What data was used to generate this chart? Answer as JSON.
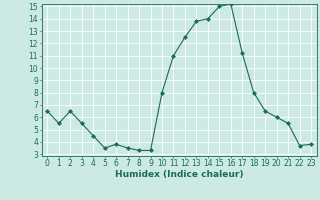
{
  "x": [
    0,
    1,
    2,
    3,
    4,
    5,
    6,
    7,
    8,
    9,
    10,
    11,
    12,
    13,
    14,
    15,
    16,
    17,
    18,
    19,
    20,
    21,
    22,
    23
  ],
  "y": [
    6.5,
    5.5,
    6.5,
    5.5,
    4.5,
    3.5,
    3.8,
    3.5,
    3.3,
    3.3,
    8.0,
    11.0,
    12.5,
    13.8,
    14.0,
    15.0,
    15.2,
    11.2,
    8.0,
    6.5,
    6.0,
    5.5,
    3.7,
    3.8
  ],
  "line_color": "#1a6b5a",
  "marker": "D",
  "marker_size": 2,
  "bg_color": "#cce9e4",
  "grid_color": "#ffffff",
  "xlabel": "Humidex (Indice chaleur)",
  "ylim": [
    3,
    15
  ],
  "xlim": [
    -0.5,
    23.5
  ],
  "yticks": [
    3,
    4,
    5,
    6,
    7,
    8,
    9,
    10,
    11,
    12,
    13,
    14,
    15
  ],
  "xticks": [
    0,
    1,
    2,
    3,
    4,
    5,
    6,
    7,
    8,
    9,
    10,
    11,
    12,
    13,
    14,
    15,
    16,
    17,
    18,
    19,
    20,
    21,
    22,
    23
  ],
  "xtick_labels": [
    "0",
    "1",
    "2",
    "3",
    "4",
    "5",
    "6",
    "7",
    "8",
    "9",
    "10",
    "11",
    "12",
    "13",
    "14",
    "15",
    "16",
    "17",
    "18",
    "19",
    "20",
    "21",
    "22",
    "23"
  ],
  "tick_color": "#1a6b5a",
  "axis_color": "#1a6b5a",
  "label_fontsize": 6.5,
  "tick_fontsize": 5.5,
  "grid_linewidth": 0.6
}
